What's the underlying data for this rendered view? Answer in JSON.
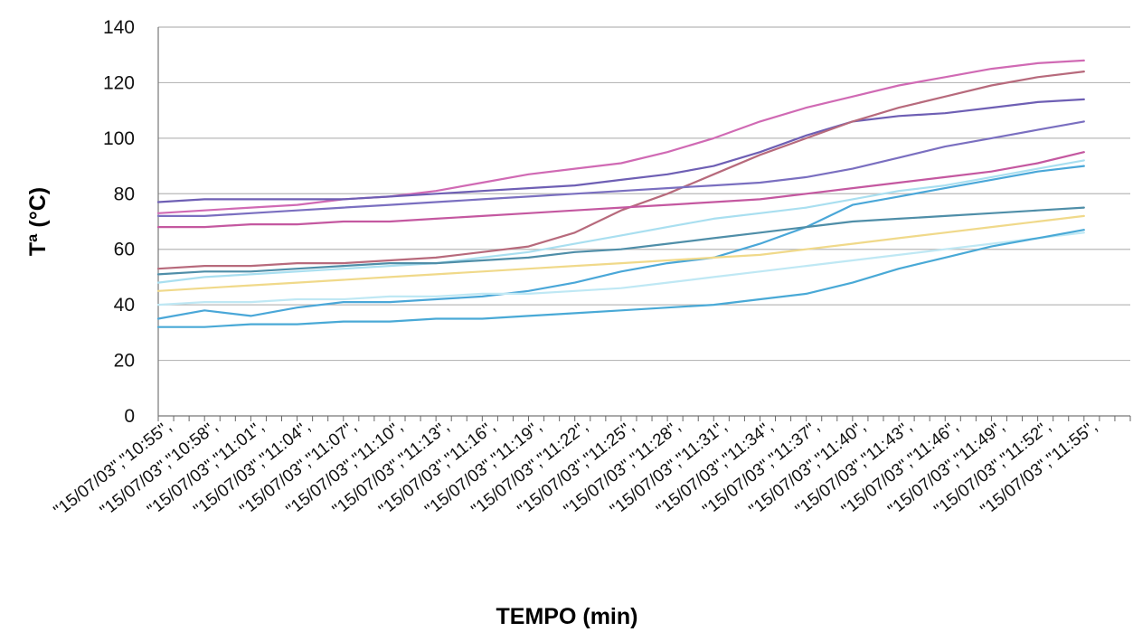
{
  "chart_data": {
    "type": "line",
    "title": "",
    "xlabel": "TEMPO (min)",
    "ylabel": "Tª (°C)",
    "ylim": [
      0,
      140
    ],
    "yticks": [
      "0",
      "20",
      "40",
      "60",
      "80",
      "100",
      "120",
      "140"
    ],
    "grid": true,
    "legend": "none",
    "x_tick_labels": [
      "\"15/07/03\",\"10:55\",",
      "\"15/07/03\",\"10:58\",",
      "\"15/07/03\",\"11:01\",",
      "\"15/07/03\",\"11:04\",",
      "\"15/07/03\",\"11:07\",",
      "\"15/07/03\",\"11:10\",",
      "\"15/07/03\",\"11:13\",",
      "\"15/07/03\",\"11:16\",",
      "\"15/07/03\",\"11:19\",",
      "\"15/07/03\",\"11:22\",",
      "\"15/07/03\",\"11:25\",",
      "\"15/07/03\",\"11:28\",",
      "\"15/07/03\",\"11:31\",",
      "\"15/07/03\",\"11:34\",",
      "\"15/07/03\",\"11:37\",",
      "\"15/07/03\",\"11:40\",",
      "\"15/07/03\",\"11:43\",",
      "\"15/07/03\",\"11:46\",",
      "\"15/07/03\",\"11:49\",",
      "\"15/07/03\",\"11:52\",",
      "\"15/07/03\",\"11:55\","
    ],
    "x_minutes": [
      0,
      3,
      6,
      9,
      12,
      15,
      18,
      21,
      24,
      27,
      30,
      33,
      36,
      39,
      42,
      45,
      48,
      51,
      54,
      57,
      60
    ],
    "series": [
      {
        "color": "#d06ab4",
        "values": [
          73,
          74,
          75,
          76,
          78,
          79,
          81,
          84,
          87,
          89,
          91,
          95,
          100,
          106,
          111,
          115,
          119,
          122,
          125,
          127,
          128
        ]
      },
      {
        "color": "#6e5fb4",
        "values": [
          77,
          78,
          78,
          78,
          78,
          79,
          80,
          81,
          82,
          83,
          85,
          87,
          90,
          95,
          101,
          106,
          108,
          109,
          111,
          113,
          114
        ]
      },
      {
        "color": "#b76a7c",
        "values": [
          53,
          54,
          54,
          55,
          55,
          56,
          57,
          59,
          61,
          66,
          74,
          80,
          87,
          94,
          100,
          106,
          111,
          115,
          119,
          122,
          124
        ]
      },
      {
        "color": "#7a6fc0",
        "values": [
          72,
          72,
          73,
          74,
          75,
          76,
          77,
          78,
          79,
          80,
          81,
          82,
          83,
          84,
          86,
          89,
          93,
          97,
          100,
          103,
          106
        ]
      },
      {
        "color": "#c458a0",
        "values": [
          68,
          68,
          69,
          69,
          70,
          70,
          71,
          72,
          73,
          74,
          75,
          76,
          77,
          78,
          80,
          82,
          84,
          86,
          88,
          91,
          95
        ]
      },
      {
        "color": "#4aa7d8",
        "values": [
          35,
          38,
          36,
          39,
          41,
          41,
          42,
          43,
          45,
          48,
          52,
          55,
          57,
          62,
          68,
          76,
          79,
          82,
          85,
          88,
          90
        ]
      },
      {
        "color": "#a9dff0",
        "values": [
          48,
          50,
          51,
          52,
          53,
          54,
          55,
          57,
          59,
          62,
          65,
          68,
          71,
          73,
          75,
          78,
          81,
          83,
          86,
          89,
          92
        ]
      },
      {
        "color": "#4f8ea8",
        "values": [
          51,
          52,
          52,
          53,
          54,
          55,
          55,
          56,
          57,
          59,
          60,
          62,
          64,
          66,
          68,
          70,
          71,
          72,
          73,
          74,
          75
        ]
      },
      {
        "color": "#f0d98a",
        "values": [
          45,
          46,
          47,
          48,
          49,
          50,
          51,
          52,
          53,
          54,
          55,
          56,
          57,
          58,
          60,
          62,
          64,
          66,
          68,
          70,
          72
        ]
      },
      {
        "color": "#bfe8f4",
        "values": [
          40,
          41,
          41,
          42,
          42,
          43,
          43,
          44,
          44,
          45,
          46,
          48,
          50,
          52,
          54,
          56,
          58,
          60,
          62,
          64,
          66
        ]
      },
      {
        "color": "#49a9d6",
        "values": [
          32,
          32,
          33,
          33,
          34,
          34,
          35,
          35,
          36,
          37,
          38,
          39,
          40,
          42,
          44,
          48,
          53,
          57,
          61,
          64,
          67
        ]
      }
    ]
  }
}
